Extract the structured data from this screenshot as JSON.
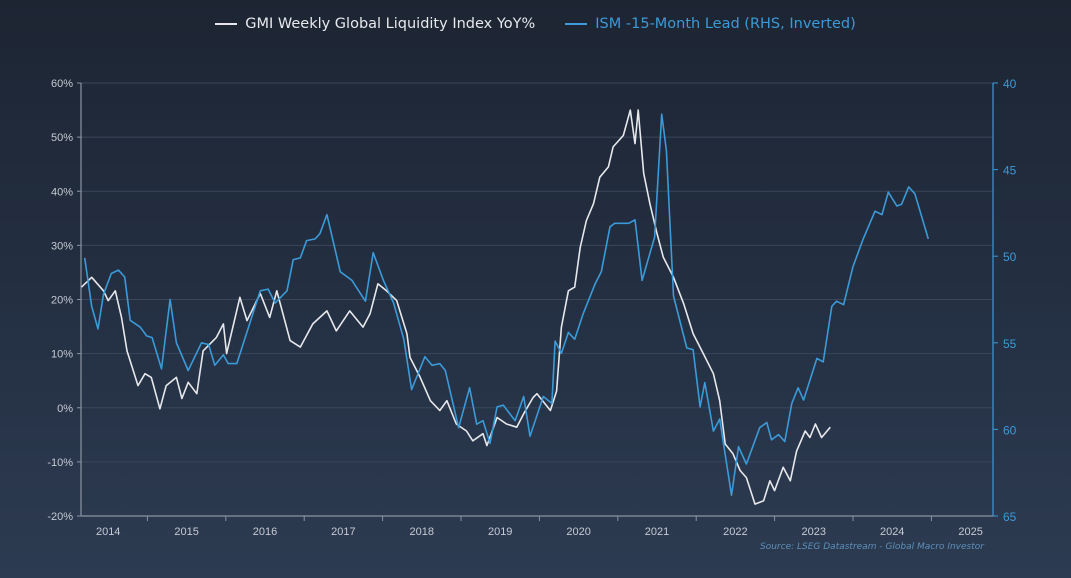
{
  "chart_data": {
    "type": "line",
    "title": "",
    "source": "Source: LSEG Datastream - Global Macro Investor",
    "x_tick_labels": [
      "2014",
      "2015",
      "2016",
      "2017",
      "2018",
      "2019",
      "2020",
      "2021",
      "2022",
      "2023",
      "2024",
      "2025"
    ],
    "xlim": [
      2014.15,
      2025.78
    ],
    "left_axis": {
      "ylim": [
        -20,
        60
      ],
      "ticks": [
        "-20%",
        "-10%",
        "0%",
        "10%",
        "20%",
        "30%",
        "40%",
        "50%",
        "60%"
      ],
      "tick_values": [
        -20,
        -10,
        0,
        10,
        20,
        30,
        40,
        50,
        60
      ]
    },
    "right_axis": {
      "ylim": [
        40,
        65
      ],
      "inverted": true,
      "ticks": [
        "40",
        "45",
        "50",
        "55",
        "60",
        "65"
      ],
      "tick_values": [
        40,
        45,
        50,
        55,
        60,
        65
      ]
    },
    "grid": true,
    "legend_placement": "top-center",
    "colors": {
      "gmi": "#e6e8ec",
      "ism": "#3b9ad8",
      "grid": "#3a4659",
      "axis": "#8a94a3",
      "tick_text": "#c6cbd3"
    },
    "series": [
      {
        "name": "GMI Weekly Global Liquidity Index YoY%",
        "axis": "left",
        "x": [
          2014.16,
          2014.29,
          2014.44,
          2014.5,
          2014.59,
          2014.67,
          2014.74,
          2014.88,
          2014.97,
          2015.05,
          2015.16,
          2015.24,
          2015.37,
          2015.44,
          2015.52,
          2015.63,
          2015.71,
          2015.88,
          2015.97,
          2016.01,
          2016.18,
          2016.27,
          2016.44,
          2016.56,
          2016.65,
          2016.82,
          2016.95,
          2017.11,
          2017.29,
          2017.41,
          2017.58,
          2017.75,
          2017.84,
          2017.94,
          2018.05,
          2018.18,
          2018.31,
          2018.35,
          2018.48,
          2018.61,
          2018.73,
          2018.82,
          2018.94,
          2019.07,
          2019.15,
          2019.28,
          2019.33,
          2019.46,
          2019.58,
          2019.71,
          2019.8,
          2019.92,
          2019.97,
          2020.14,
          2020.22,
          2020.28,
          2020.37,
          2020.45,
          2020.52,
          2020.6,
          2020.69,
          2020.77,
          2020.88,
          2020.94,
          2021.07,
          2021.16,
          2021.22,
          2021.26,
          2021.33,
          2021.41,
          2021.5,
          2021.58,
          2021.71,
          2021.84,
          2021.96,
          2022.09,
          2022.22,
          2022.3,
          2022.37,
          2022.47,
          2022.56,
          2022.64,
          2022.75,
          2022.86,
          2022.94,
          2023.0,
          2023.11,
          2023.2,
          2023.28,
          2023.39,
          2023.45,
          2023.52,
          2023.6,
          2023.71
        ],
        "values": [
          22.3,
          24.1,
          21.6,
          19.8,
          21.6,
          16.7,
          10.5,
          4.1,
          6.3,
          5.6,
          -0.2,
          4.1,
          5.6,
          1.7,
          4.7,
          2.6,
          10.5,
          13.0,
          15.5,
          10.0,
          20.4,
          16.1,
          21.1,
          16.7,
          21.6,
          12.4,
          11.2,
          15.5,
          17.9,
          14.2,
          17.9,
          14.9,
          17.4,
          22.9,
          21.6,
          19.8,
          13.7,
          9.3,
          5.6,
          1.3,
          -0.5,
          1.3,
          -3.0,
          -4.3,
          -6.1,
          -4.8,
          -7.0,
          -1.8,
          -3.0,
          -3.6,
          -1.1,
          1.9,
          2.6,
          -0.5,
          3.1,
          14.9,
          21.6,
          22.3,
          29.6,
          34.6,
          37.7,
          42.6,
          44.5,
          48.2,
          50.3,
          55.0,
          48.8,
          55.0,
          43.3,
          37.7,
          32.2,
          27.8,
          24.1,
          19.2,
          13.7,
          10.0,
          6.3,
          1.3,
          -6.7,
          -8.5,
          -11.6,
          -12.9,
          -17.8,
          -17.2,
          -13.5,
          -15.3,
          -11.0,
          -13.5,
          -8.0,
          -4.3,
          -5.5,
          -3.0,
          -5.5,
          -3.6
        ]
      },
      {
        "name": "ISM -15-Month Lead (RHS, Inverted)",
        "axis": "right",
        "x": [
          2014.2,
          2014.29,
          2014.37,
          2014.44,
          2014.54,
          2014.63,
          2014.71,
          2014.78,
          2014.91,
          2014.99,
          2015.06,
          2015.18,
          2015.29,
          2015.37,
          2015.52,
          2015.69,
          2015.78,
          2015.86,
          2015.97,
          2016.03,
          2016.14,
          2016.29,
          2016.44,
          2016.54,
          2016.63,
          2016.78,
          2016.86,
          2016.95,
          2017.03,
          2017.14,
          2017.2,
          2017.29,
          2017.46,
          2017.61,
          2017.78,
          2017.88,
          2018.01,
          2018.14,
          2018.27,
          2018.37,
          2018.54,
          2018.63,
          2018.73,
          2018.8,
          2018.97,
          2019.11,
          2019.2,
          2019.28,
          2019.37,
          2019.46,
          2019.54,
          2019.69,
          2019.8,
          2019.88,
          2020.05,
          2020.16,
          2020.2,
          2020.28,
          2020.37,
          2020.45,
          2020.56,
          2020.71,
          2020.79,
          2020.9,
          2020.96,
          2021.14,
          2021.22,
          2021.31,
          2021.47,
          2021.56,
          2021.62,
          2021.71,
          2021.88,
          2021.96,
          2022.05,
          2022.11,
          2022.22,
          2022.3,
          2022.45,
          2022.54,
          2022.64,
          2022.81,
          2022.9,
          2022.96,
          2023.05,
          2023.13,
          2023.22,
          2023.3,
          2023.37,
          2023.54,
          2023.62,
          2023.73,
          2023.79,
          2023.88,
          2024.0,
          2024.13,
          2024.28,
          2024.37,
          2024.45,
          2024.56,
          2024.62,
          2024.71,
          2024.79,
          2024.96
        ],
        "values": [
          50.1,
          52.9,
          54.2,
          52.2,
          51.0,
          50.8,
          51.2,
          53.7,
          54.1,
          54.6,
          54.7,
          56.5,
          52.5,
          55.0,
          56.6,
          55.0,
          55.1,
          56.3,
          55.7,
          56.2,
          56.2,
          54.1,
          52.0,
          51.9,
          52.7,
          52.0,
          50.2,
          50.1,
          49.1,
          49.0,
          48.7,
          47.6,
          50.9,
          51.4,
          52.6,
          49.8,
          51.4,
          52.7,
          54.8,
          57.7,
          55.8,
          56.3,
          56.2,
          56.6,
          59.9,
          57.6,
          59.7,
          59.5,
          60.8,
          58.7,
          58.6,
          59.5,
          58.1,
          60.4,
          58.1,
          58.5,
          54.9,
          55.6,
          54.4,
          54.8,
          53.3,
          51.6,
          50.9,
          48.3,
          48.1,
          48.1,
          47.9,
          51.4,
          48.9,
          41.8,
          43.9,
          52.3,
          55.3,
          55.4,
          58.7,
          57.3,
          60.1,
          59.4,
          63.8,
          61.0,
          62.0,
          59.9,
          59.6,
          60.6,
          60.3,
          60.7,
          58.5,
          57.6,
          58.3,
          55.9,
          56.1,
          52.9,
          52.6,
          52.8,
          50.6,
          49.0,
          47.4,
          47.6,
          46.3,
          47.1,
          47.0,
          46.0,
          46.4,
          49.0
        ]
      }
    ]
  }
}
